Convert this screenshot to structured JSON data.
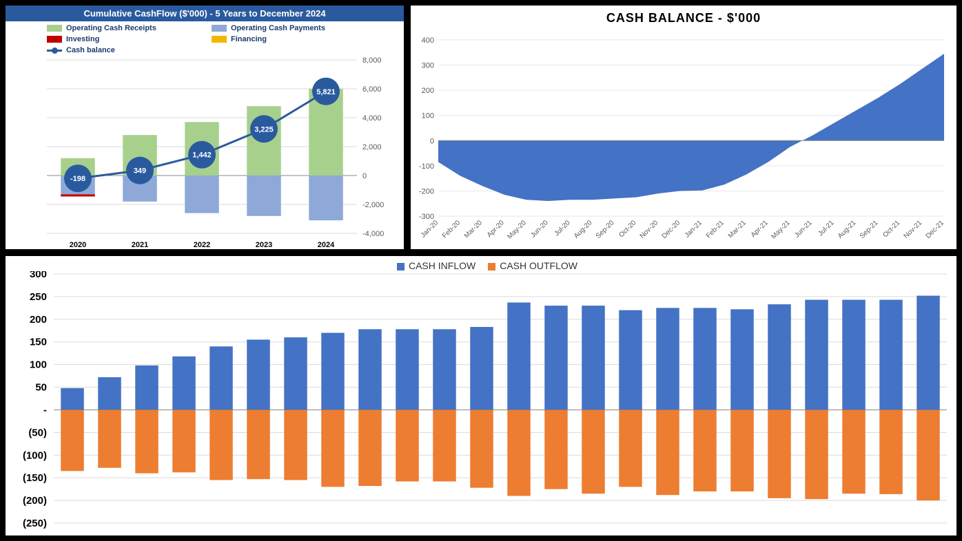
{
  "colors": {
    "receipts": "#a8d08d",
    "payments": "#8ea9d8",
    "investing": "#c00000",
    "financing": "#f2b800",
    "cashLine": "#2a5a9e",
    "area": "#4472c4",
    "inflow": "#4472c4",
    "outflow": "#ed7d31",
    "grid": "#d9d9d9",
    "tick": "#595959",
    "titleBar": "#2a5a9e"
  },
  "chart1": {
    "type": "combo-bar-line",
    "title": "Cumulative CashFlow ($'000) - 5 Years to December 2024",
    "legend": [
      {
        "label": "Operating Cash Receipts",
        "type": "sw",
        "color": "#a8d08d"
      },
      {
        "label": "Operating Cash Payments",
        "type": "sw",
        "color": "#8ea9d8"
      },
      {
        "label": "Investing",
        "type": "sw",
        "color": "#c00000"
      },
      {
        "label": "Financing",
        "type": "sw",
        "color": "#f2b800"
      },
      {
        "label": "Cash balance",
        "type": "line",
        "color": "#2a5a9e"
      }
    ],
    "categories": [
      "2020",
      "2021",
      "2022",
      "2023",
      "2024"
    ],
    "bars": {
      "receipts": [
        1200,
        2800,
        3700,
        4800,
        6000
      ],
      "payments": [
        -1300,
        -1800,
        -2600,
        -2800,
        -3100
      ],
      "investing": [
        -150,
        0,
        0,
        0,
        0
      ],
      "financing": [
        0,
        0,
        0,
        0,
        0
      ]
    },
    "cashBalance": [
      -198,
      349,
      1442,
      3225,
      5821
    ],
    "yAxis": {
      "min": -4000,
      "max": 8000,
      "ticks": [
        -4000,
        -2000,
        0,
        2000,
        4000,
        6000,
        8000
      ]
    },
    "label_fontsize": 11,
    "marker_radius": 20,
    "line_width": 3
  },
  "chart2": {
    "type": "area",
    "title": "CASH BALANCE - $'000",
    "title_fontsize": 18,
    "categories": [
      "Jan-20",
      "Feb-20",
      "Mar-20",
      "Apr-20",
      "May-20",
      "Jun-20",
      "Jul-20",
      "Aug-20",
      "Sep-20",
      "Oct-20",
      "Nov-20",
      "Dec-20",
      "Jan-21",
      "Feb-21",
      "Mar-21",
      "Apr-21",
      "May-21",
      "Jun-21",
      "Jul-21",
      "Aug-21",
      "Sep-21",
      "Oct-21",
      "Nov-21",
      "Dec-21"
    ],
    "values": [
      -85,
      -140,
      -180,
      -215,
      -235,
      -240,
      -235,
      -235,
      -230,
      -225,
      -210,
      -200,
      -198,
      -175,
      -135,
      -85,
      -25,
      20,
      70,
      120,
      170,
      225,
      285,
      345
    ],
    "yAxis": {
      "min": -300,
      "max": 400,
      "ticks": [
        -300,
        -200,
        -100,
        0,
        100,
        200,
        300,
        400
      ]
    },
    "area_color": "#4472c4",
    "grid_color": "#e6e6e6"
  },
  "chart3": {
    "type": "bar-posneg",
    "legend": [
      {
        "label": "CASH INFLOW",
        "color": "#4472c4"
      },
      {
        "label": "CASH OUTFLOW",
        "color": "#ed7d31"
      }
    ],
    "n": 24,
    "inflow": [
      48,
      72,
      98,
      118,
      140,
      155,
      160,
      170,
      178,
      178,
      178,
      183,
      237,
      230,
      230,
      220,
      225,
      225,
      222,
      233,
      243,
      243,
      243,
      252
    ],
    "outflow": [
      -135,
      -128,
      -140,
      -138,
      -155,
      -153,
      -155,
      -170,
      -168,
      -158,
      -158,
      -172,
      -190,
      -175,
      -185,
      -170,
      -188,
      -180,
      -180,
      -195,
      -197,
      -185,
      -186,
      -200
    ],
    "yAxis": {
      "min": -250,
      "max": 300,
      "ticks": [
        300,
        250,
        200,
        150,
        100,
        50,
        0,
        -50,
        -100,
        -150,
        -200,
        -250
      ],
      "labels": [
        "300",
        "250",
        "200",
        "150",
        "100",
        "50",
        "-",
        "(50)",
        "(100)",
        "(150)",
        "(200)",
        "(250)"
      ]
    },
    "bar_color_in": "#4472c4",
    "bar_color_out": "#ed7d31",
    "grid_color": "#d9d9d9"
  }
}
